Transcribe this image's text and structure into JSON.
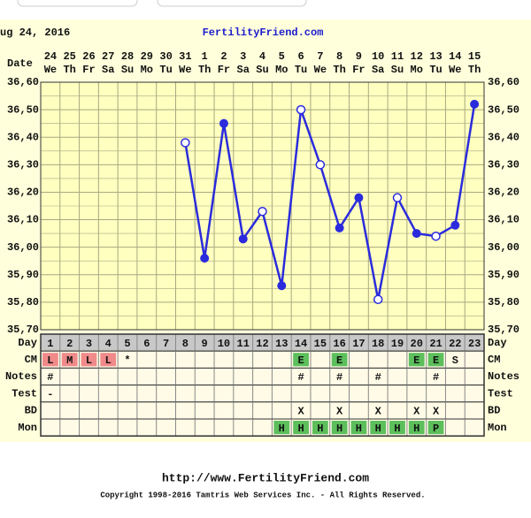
{
  "chart_data": {
    "type": "line",
    "title": "FertilityFriend.com",
    "date": "ug 24, 2016",
    "x_label": "Date",
    "categories": [
      "24",
      "25",
      "26",
      "27",
      "28",
      "29",
      "30",
      "31",
      "1",
      "2",
      "3",
      "4",
      "5",
      "6",
      "7",
      "8",
      "9",
      "10",
      "11",
      "12",
      "13",
      "14",
      "15"
    ],
    "weekdays": [
      "We",
      "Th",
      "Fr",
      "Sa",
      "Su",
      "Mo",
      "Tu",
      "We",
      "Th",
      "Fr",
      "Sa",
      "Su",
      "Mo",
      "Tu",
      "We",
      "Th",
      "Fr",
      "Sa",
      "Su",
      "Mo",
      "Tu",
      "We",
      "Th"
    ],
    "values": [
      null,
      null,
      null,
      null,
      null,
      null,
      null,
      36.38,
      35.96,
      36.45,
      36.03,
      36.13,
      35.86,
      36.5,
      36.3,
      36.07,
      36.18,
      35.81,
      36.18,
      36.05,
      36.04,
      36.08,
      36.52
    ],
    "open": [
      null,
      null,
      null,
      null,
      null,
      null,
      null,
      true,
      false,
      false,
      false,
      true,
      false,
      true,
      true,
      false,
      false,
      true,
      true,
      false,
      true,
      false,
      false
    ],
    "color": "#2b2bdd",
    "ylim": [
      35.7,
      36.6
    ],
    "yticks": [
      {
        "value": 35.7,
        "label": "35,70"
      },
      {
        "value": 35.8,
        "label": "35,80"
      },
      {
        "value": 35.9,
        "label": "35,90"
      },
      {
        "value": 36.0,
        "label": "36,00"
      },
      {
        "value": 36.1,
        "label": "36,10"
      },
      {
        "value": 36.2,
        "label": "36,20"
      },
      {
        "value": 36.3,
        "label": "36,30"
      },
      {
        "value": 36.4,
        "label": "36,40"
      },
      {
        "value": 36.5,
        "label": "36,50"
      },
      {
        "value": 36.6,
        "label": "36,60"
      }
    ],
    "grid": true
  },
  "table": {
    "cell_colors": {
      "L": "#f08a8a",
      "M": "#f08a8a",
      "E": "#5cbf5c",
      "H": "#5cbf5c",
      "P": "#5cbf5c"
    },
    "rows": [
      {
        "label": "Day",
        "cells": [
          1,
          2,
          3,
          4,
          5,
          6,
          7,
          8,
          9,
          10,
          11,
          12,
          13,
          14,
          15,
          16,
          17,
          18,
          19,
          20,
          21,
          22,
          23
        ]
      },
      {
        "label": "CM",
        "cells": [
          "L",
          "M",
          "L",
          "L",
          "*",
          null,
          null,
          null,
          null,
          null,
          null,
          null,
          null,
          "E",
          null,
          "E",
          null,
          null,
          null,
          "E",
          "E",
          "S",
          null
        ]
      },
      {
        "label": "Notes",
        "cells": [
          "#",
          null,
          null,
          null,
          null,
          null,
          null,
          null,
          null,
          null,
          null,
          null,
          null,
          "#",
          null,
          "#",
          null,
          "#",
          null,
          null,
          "#",
          null,
          null
        ]
      },
      {
        "label": "Test",
        "cells": [
          "-",
          null,
          null,
          null,
          null,
          null,
          null,
          null,
          null,
          null,
          null,
          null,
          null,
          null,
          null,
          null,
          null,
          null,
          null,
          null,
          null,
          null,
          null
        ]
      },
      {
        "label": "BD",
        "cells": [
          null,
          null,
          null,
          null,
          null,
          null,
          null,
          null,
          null,
          null,
          null,
          null,
          null,
          "X",
          null,
          "X",
          null,
          "X",
          null,
          "X",
          "X",
          null,
          null
        ]
      },
      {
        "label": "Mon",
        "cells": [
          null,
          null,
          null,
          null,
          null,
          null,
          null,
          null,
          null,
          null,
          null,
          null,
          "H",
          "H",
          "H",
          "H",
          "H",
          "H",
          "H",
          "H",
          "P",
          null,
          null
        ]
      }
    ]
  },
  "footer": {
    "url": "http://www.FertilityFriend.com",
    "copyright": "Copyright 1998-2016 Tamtris Web Services Inc. - All Rights Reserved."
  }
}
